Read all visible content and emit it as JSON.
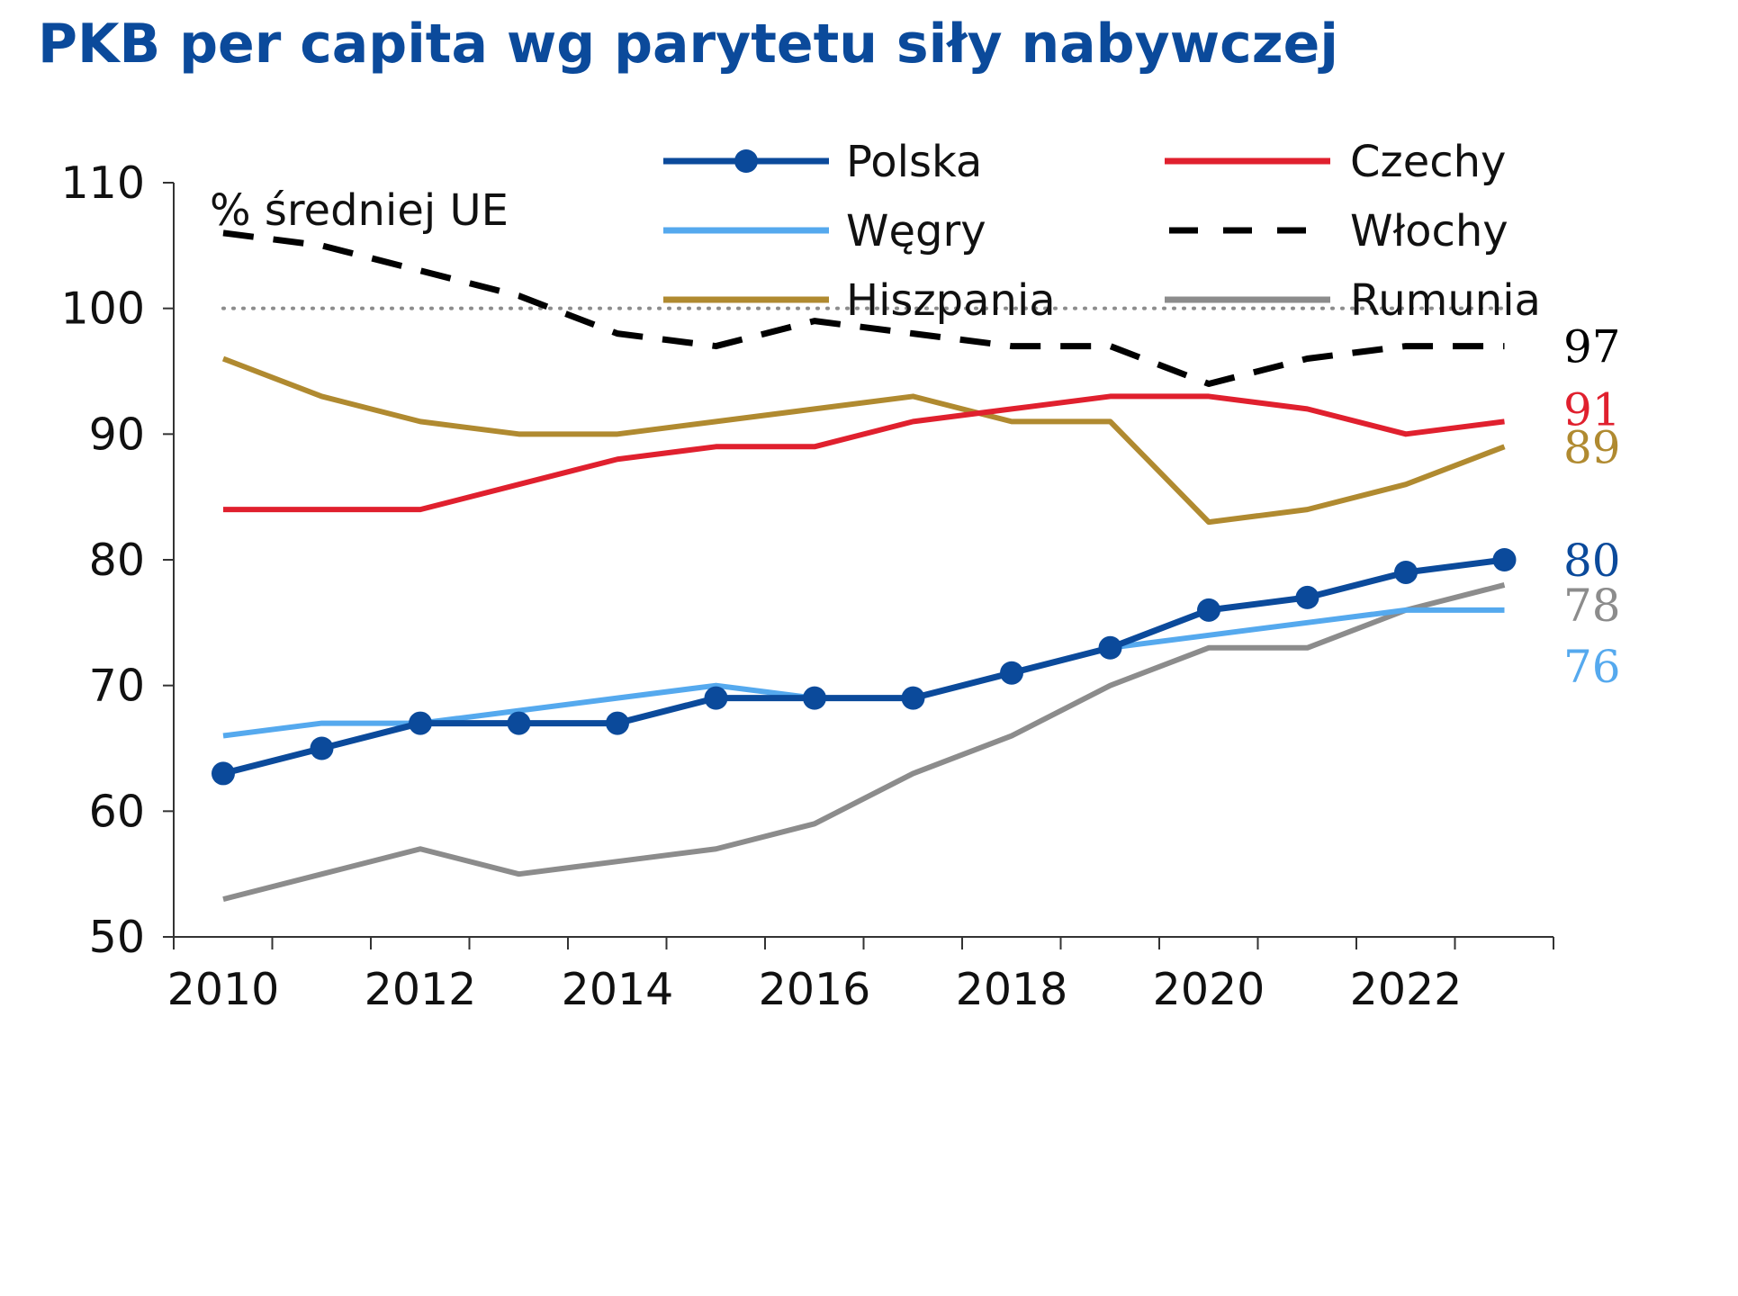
{
  "chart_data": {
    "type": "line",
    "title": "PKB per capita wg parytetu siły nabywczej",
    "annotation": "% średniej UE",
    "x": [
      2010,
      2011,
      2012,
      2013,
      2014,
      2015,
      2016,
      2017,
      2018,
      2019,
      2020,
      2021,
      2022,
      2023
    ],
    "x_tick_labels": [
      "2010",
      "2012",
      "2014",
      "2016",
      "2018",
      "2020",
      "2022"
    ],
    "y_tick_labels": [
      "50",
      "60",
      "70",
      "80",
      "90",
      "100",
      "110"
    ],
    "ylim": [
      50,
      110
    ],
    "reference_line": {
      "value": 100,
      "style": "dotted",
      "color": "#8c8c8c"
    },
    "legend_placement": "top-right",
    "series": [
      {
        "name": "Polska",
        "color": "#0b4a9b",
        "style": "solid-markers",
        "values": [
          63,
          65,
          67,
          67,
          67,
          69,
          69,
          69,
          71,
          73,
          76,
          77,
          79,
          80
        ],
        "end_label": "80"
      },
      {
        "name": "Czechy",
        "color": "#e0202e",
        "style": "solid",
        "values": [
          84,
          84,
          84,
          86,
          88,
          89,
          89,
          91,
          92,
          93,
          93,
          92,
          90,
          91
        ],
        "end_label": "91"
      },
      {
        "name": "Węgry",
        "color": "#55a9ee",
        "style": "solid",
        "values": [
          66,
          67,
          67,
          68,
          69,
          70,
          69,
          69,
          71,
          73,
          74,
          75,
          76,
          76
        ],
        "end_label": "76"
      },
      {
        "name": "Włochy",
        "color": "#000000",
        "style": "dashed",
        "values": [
          106,
          105,
          103,
          101,
          98,
          97,
          99,
          98,
          97,
          97,
          94,
          96,
          97,
          97
        ],
        "end_label": "97"
      },
      {
        "name": "Hiszpania",
        "color": "#b08a30",
        "style": "solid",
        "values": [
          96,
          93,
          91,
          90,
          90,
          91,
          92,
          93,
          91,
          91,
          83,
          84,
          86,
          89
        ],
        "end_label": "89"
      },
      {
        "name": "Rumunia",
        "color": "#8c8c8c",
        "style": "solid",
        "values": [
          53,
          55,
          57,
          55,
          56,
          57,
          59,
          63,
          66,
          70,
          73,
          73,
          76,
          78
        ],
        "end_label": "78"
      }
    ]
  }
}
